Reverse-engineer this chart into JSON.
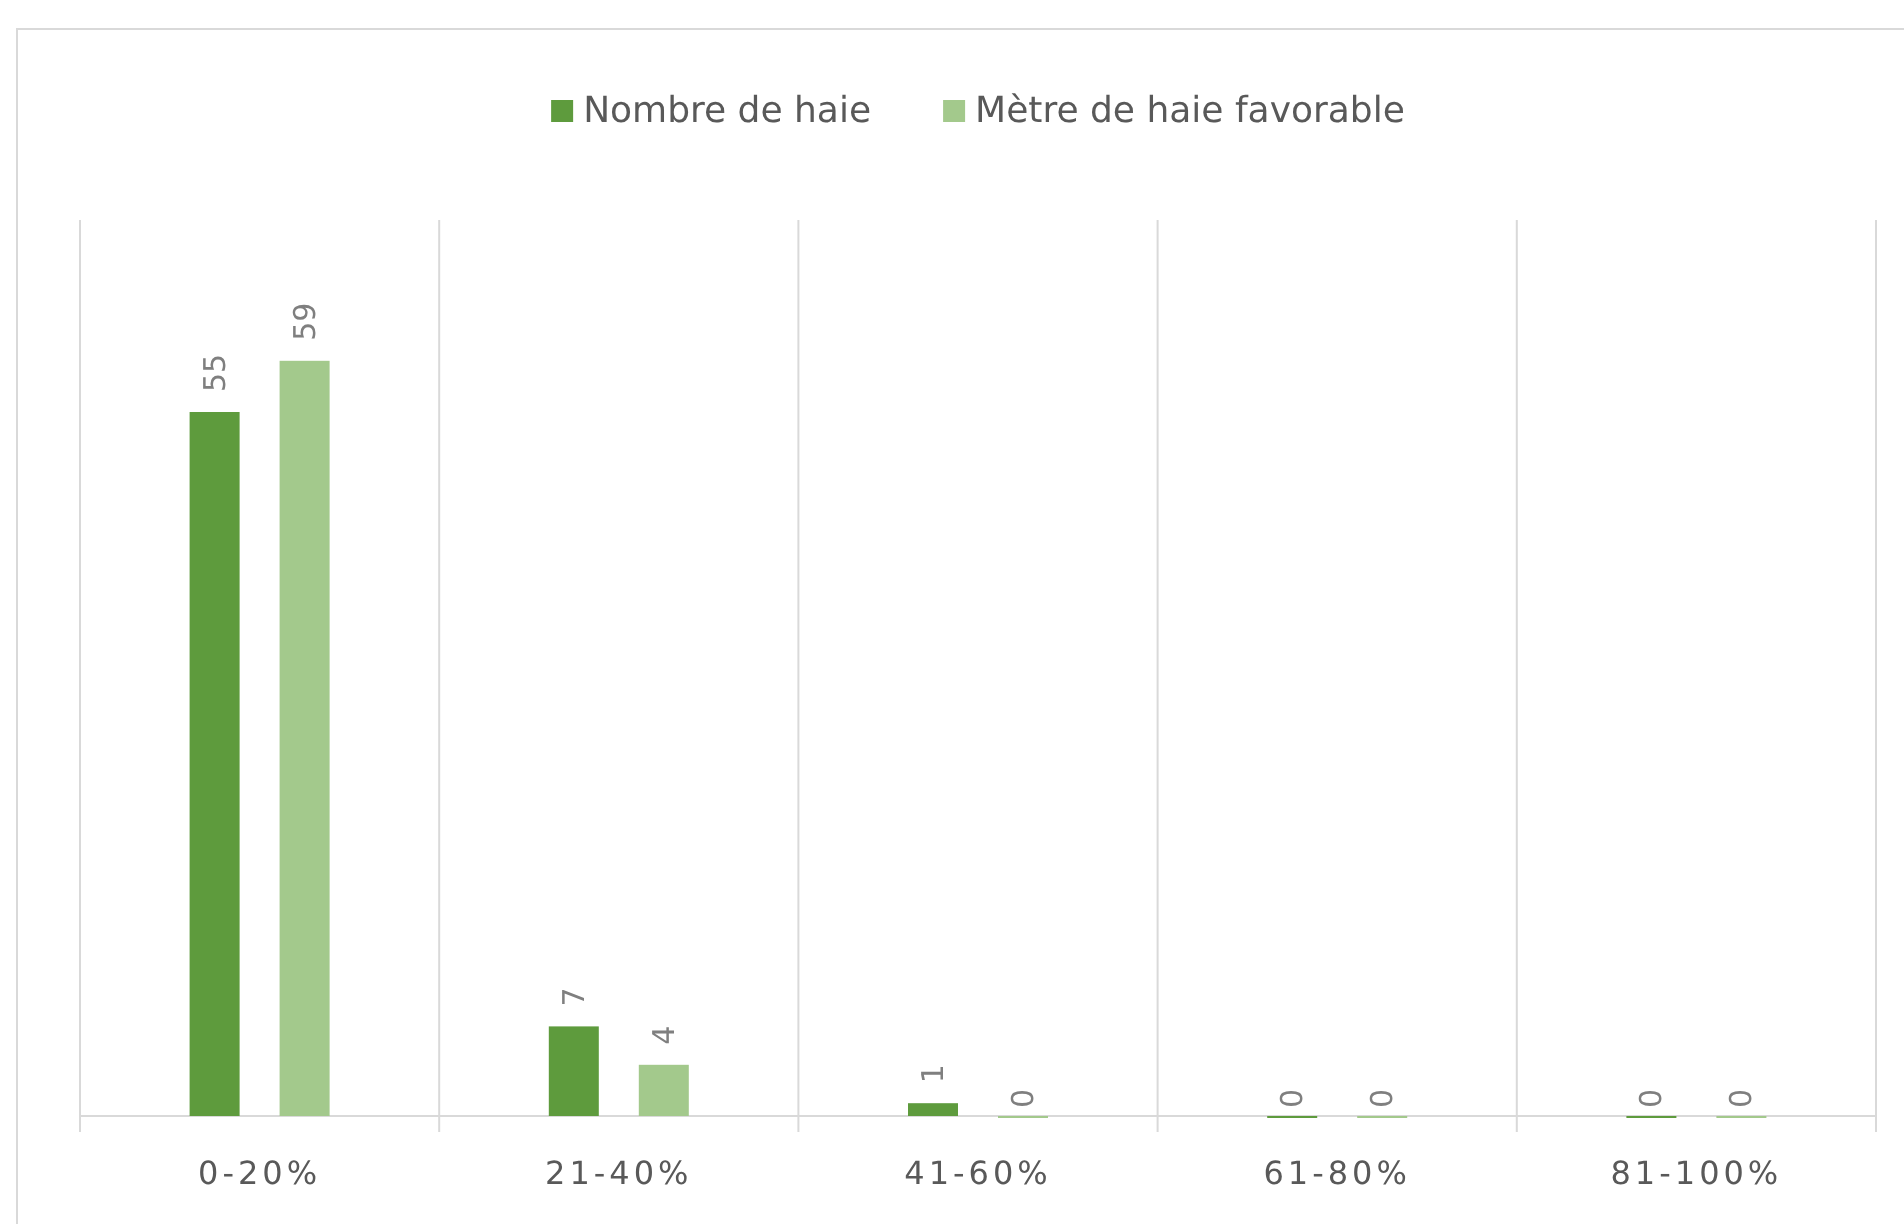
{
  "chart_data": {
    "type": "bar",
    "categories": [
      "0-20%",
      "21-40%",
      "41-60%",
      "61-80%",
      "81-100%"
    ],
    "series": [
      {
        "name": "Nombre de haie",
        "color": "#5e9b3d",
        "values": [
          55,
          7,
          1,
          0,
          0
        ]
      },
      {
        "name": "Mètre de haie favorable",
        "color": "#a3c98c",
        "values": [
          59,
          4,
          0,
          0,
          0
        ]
      }
    ],
    "ylim": [
      0,
      70
    ],
    "data_labels": true,
    "legend": "top",
    "grid": "x",
    "tick_labels": "x"
  }
}
